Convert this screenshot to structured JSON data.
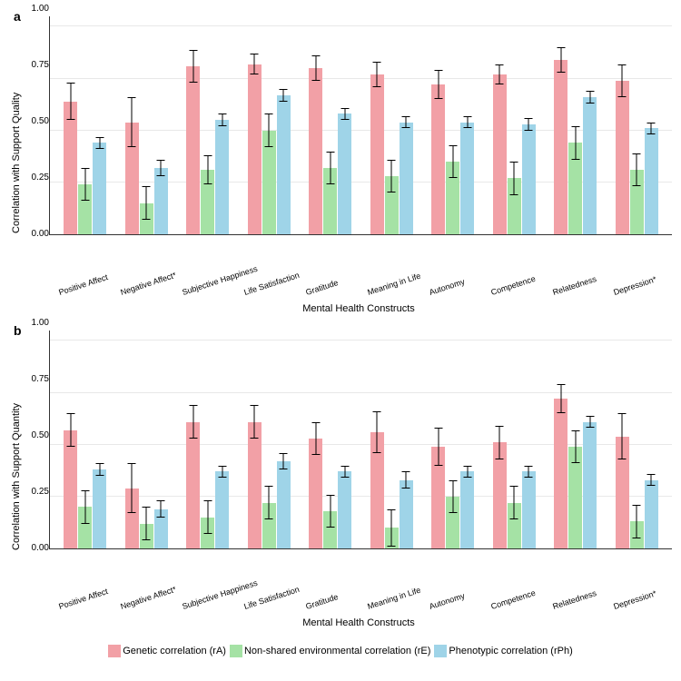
{
  "colors": {
    "rA": "#f2a0a6",
    "rE": "#a5e2a5",
    "rPh": "#9fd4e8",
    "grid": "#e8e8e8",
    "axis": "#333333",
    "bg": "#ffffff"
  },
  "legend": [
    {
      "key": "rA",
      "label": "Genetic correlation (rA)"
    },
    {
      "key": "rE",
      "label": "Non-shared environmental correlation (rE)"
    },
    {
      "key": "rPh",
      "label": "Phenotypic correlation (rPh)"
    }
  ],
  "categories": [
    "Positive Affect",
    "Negative Affect*",
    "Subjective Happiness",
    "Life Satisfaction",
    "Gratitude",
    "Meaning in Life",
    "Autonomy",
    "Competence",
    "Relatedness",
    "Depression*"
  ],
  "panels": [
    {
      "id": "a",
      "ylabel": "Correlation with Support Quality",
      "xlabel": "Mental Health Constructs",
      "ylim": [
        0,
        1.05
      ],
      "yticks": [
        0.0,
        0.25,
        0.5,
        0.75,
        1.0
      ],
      "series": {
        "rA": [
          {
            "v": 0.64,
            "e": 0.09
          },
          {
            "v": 0.54,
            "e": 0.12
          },
          {
            "v": 0.81,
            "e": 0.08
          },
          {
            "v": 0.82,
            "e": 0.05
          },
          {
            "v": 0.8,
            "e": 0.06
          },
          {
            "v": 0.77,
            "e": 0.06
          },
          {
            "v": 0.72,
            "e": 0.07
          },
          {
            "v": 0.77,
            "e": 0.05
          },
          {
            "v": 0.84,
            "e": 0.06
          },
          {
            "v": 0.74,
            "e": 0.08
          }
        ],
        "rE": [
          {
            "v": 0.24,
            "e": 0.08
          },
          {
            "v": 0.15,
            "e": 0.08
          },
          {
            "v": 0.31,
            "e": 0.07
          },
          {
            "v": 0.5,
            "e": 0.08
          },
          {
            "v": 0.32,
            "e": 0.08
          },
          {
            "v": 0.28,
            "e": 0.08
          },
          {
            "v": 0.35,
            "e": 0.08
          },
          {
            "v": 0.27,
            "e": 0.08
          },
          {
            "v": 0.44,
            "e": 0.08
          },
          {
            "v": 0.31,
            "e": 0.08
          }
        ],
        "rPh": [
          {
            "v": 0.44,
            "e": 0.03
          },
          {
            "v": 0.32,
            "e": 0.04
          },
          {
            "v": 0.55,
            "e": 0.03
          },
          {
            "v": 0.67,
            "e": 0.03
          },
          {
            "v": 0.58,
            "e": 0.03
          },
          {
            "v": 0.54,
            "e": 0.03
          },
          {
            "v": 0.54,
            "e": 0.03
          },
          {
            "v": 0.53,
            "e": 0.03
          },
          {
            "v": 0.66,
            "e": 0.03
          },
          {
            "v": 0.51,
            "e": 0.03
          }
        ]
      }
    },
    {
      "id": "b",
      "ylabel": "Correlation with Support Quantity",
      "xlabel": "Mental Health Constructs",
      "ylim": [
        0,
        1.05
      ],
      "yticks": [
        0.0,
        0.25,
        0.5,
        0.75,
        1.0
      ],
      "series": {
        "rA": [
          {
            "v": 0.57,
            "e": 0.08
          },
          {
            "v": 0.29,
            "e": 0.12
          },
          {
            "v": 0.61,
            "e": 0.08
          },
          {
            "v": 0.61,
            "e": 0.08
          },
          {
            "v": 0.53,
            "e": 0.08
          },
          {
            "v": 0.56,
            "e": 0.1
          },
          {
            "v": 0.49,
            "e": 0.09
          },
          {
            "v": 0.51,
            "e": 0.08
          },
          {
            "v": 0.72,
            "e": 0.07
          },
          {
            "v": 0.54,
            "e": 0.11
          }
        ],
        "rE": [
          {
            "v": 0.2,
            "e": 0.08
          },
          {
            "v": 0.12,
            "e": 0.08
          },
          {
            "v": 0.15,
            "e": 0.08
          },
          {
            "v": 0.22,
            "e": 0.08
          },
          {
            "v": 0.18,
            "e": 0.08
          },
          {
            "v": 0.1,
            "e": 0.09
          },
          {
            "v": 0.25,
            "e": 0.08
          },
          {
            "v": 0.22,
            "e": 0.08
          },
          {
            "v": 0.49,
            "e": 0.08
          },
          {
            "v": 0.13,
            "e": 0.08
          }
        ],
        "rPh": [
          {
            "v": 0.38,
            "e": 0.03
          },
          {
            "v": 0.19,
            "e": 0.04
          },
          {
            "v": 0.37,
            "e": 0.03
          },
          {
            "v": 0.42,
            "e": 0.04
          },
          {
            "v": 0.37,
            "e": 0.03
          },
          {
            "v": 0.33,
            "e": 0.04
          },
          {
            "v": 0.37,
            "e": 0.03
          },
          {
            "v": 0.37,
            "e": 0.03
          },
          {
            "v": 0.61,
            "e": 0.03
          },
          {
            "v": 0.33,
            "e": 0.03
          }
        ]
      }
    }
  ]
}
